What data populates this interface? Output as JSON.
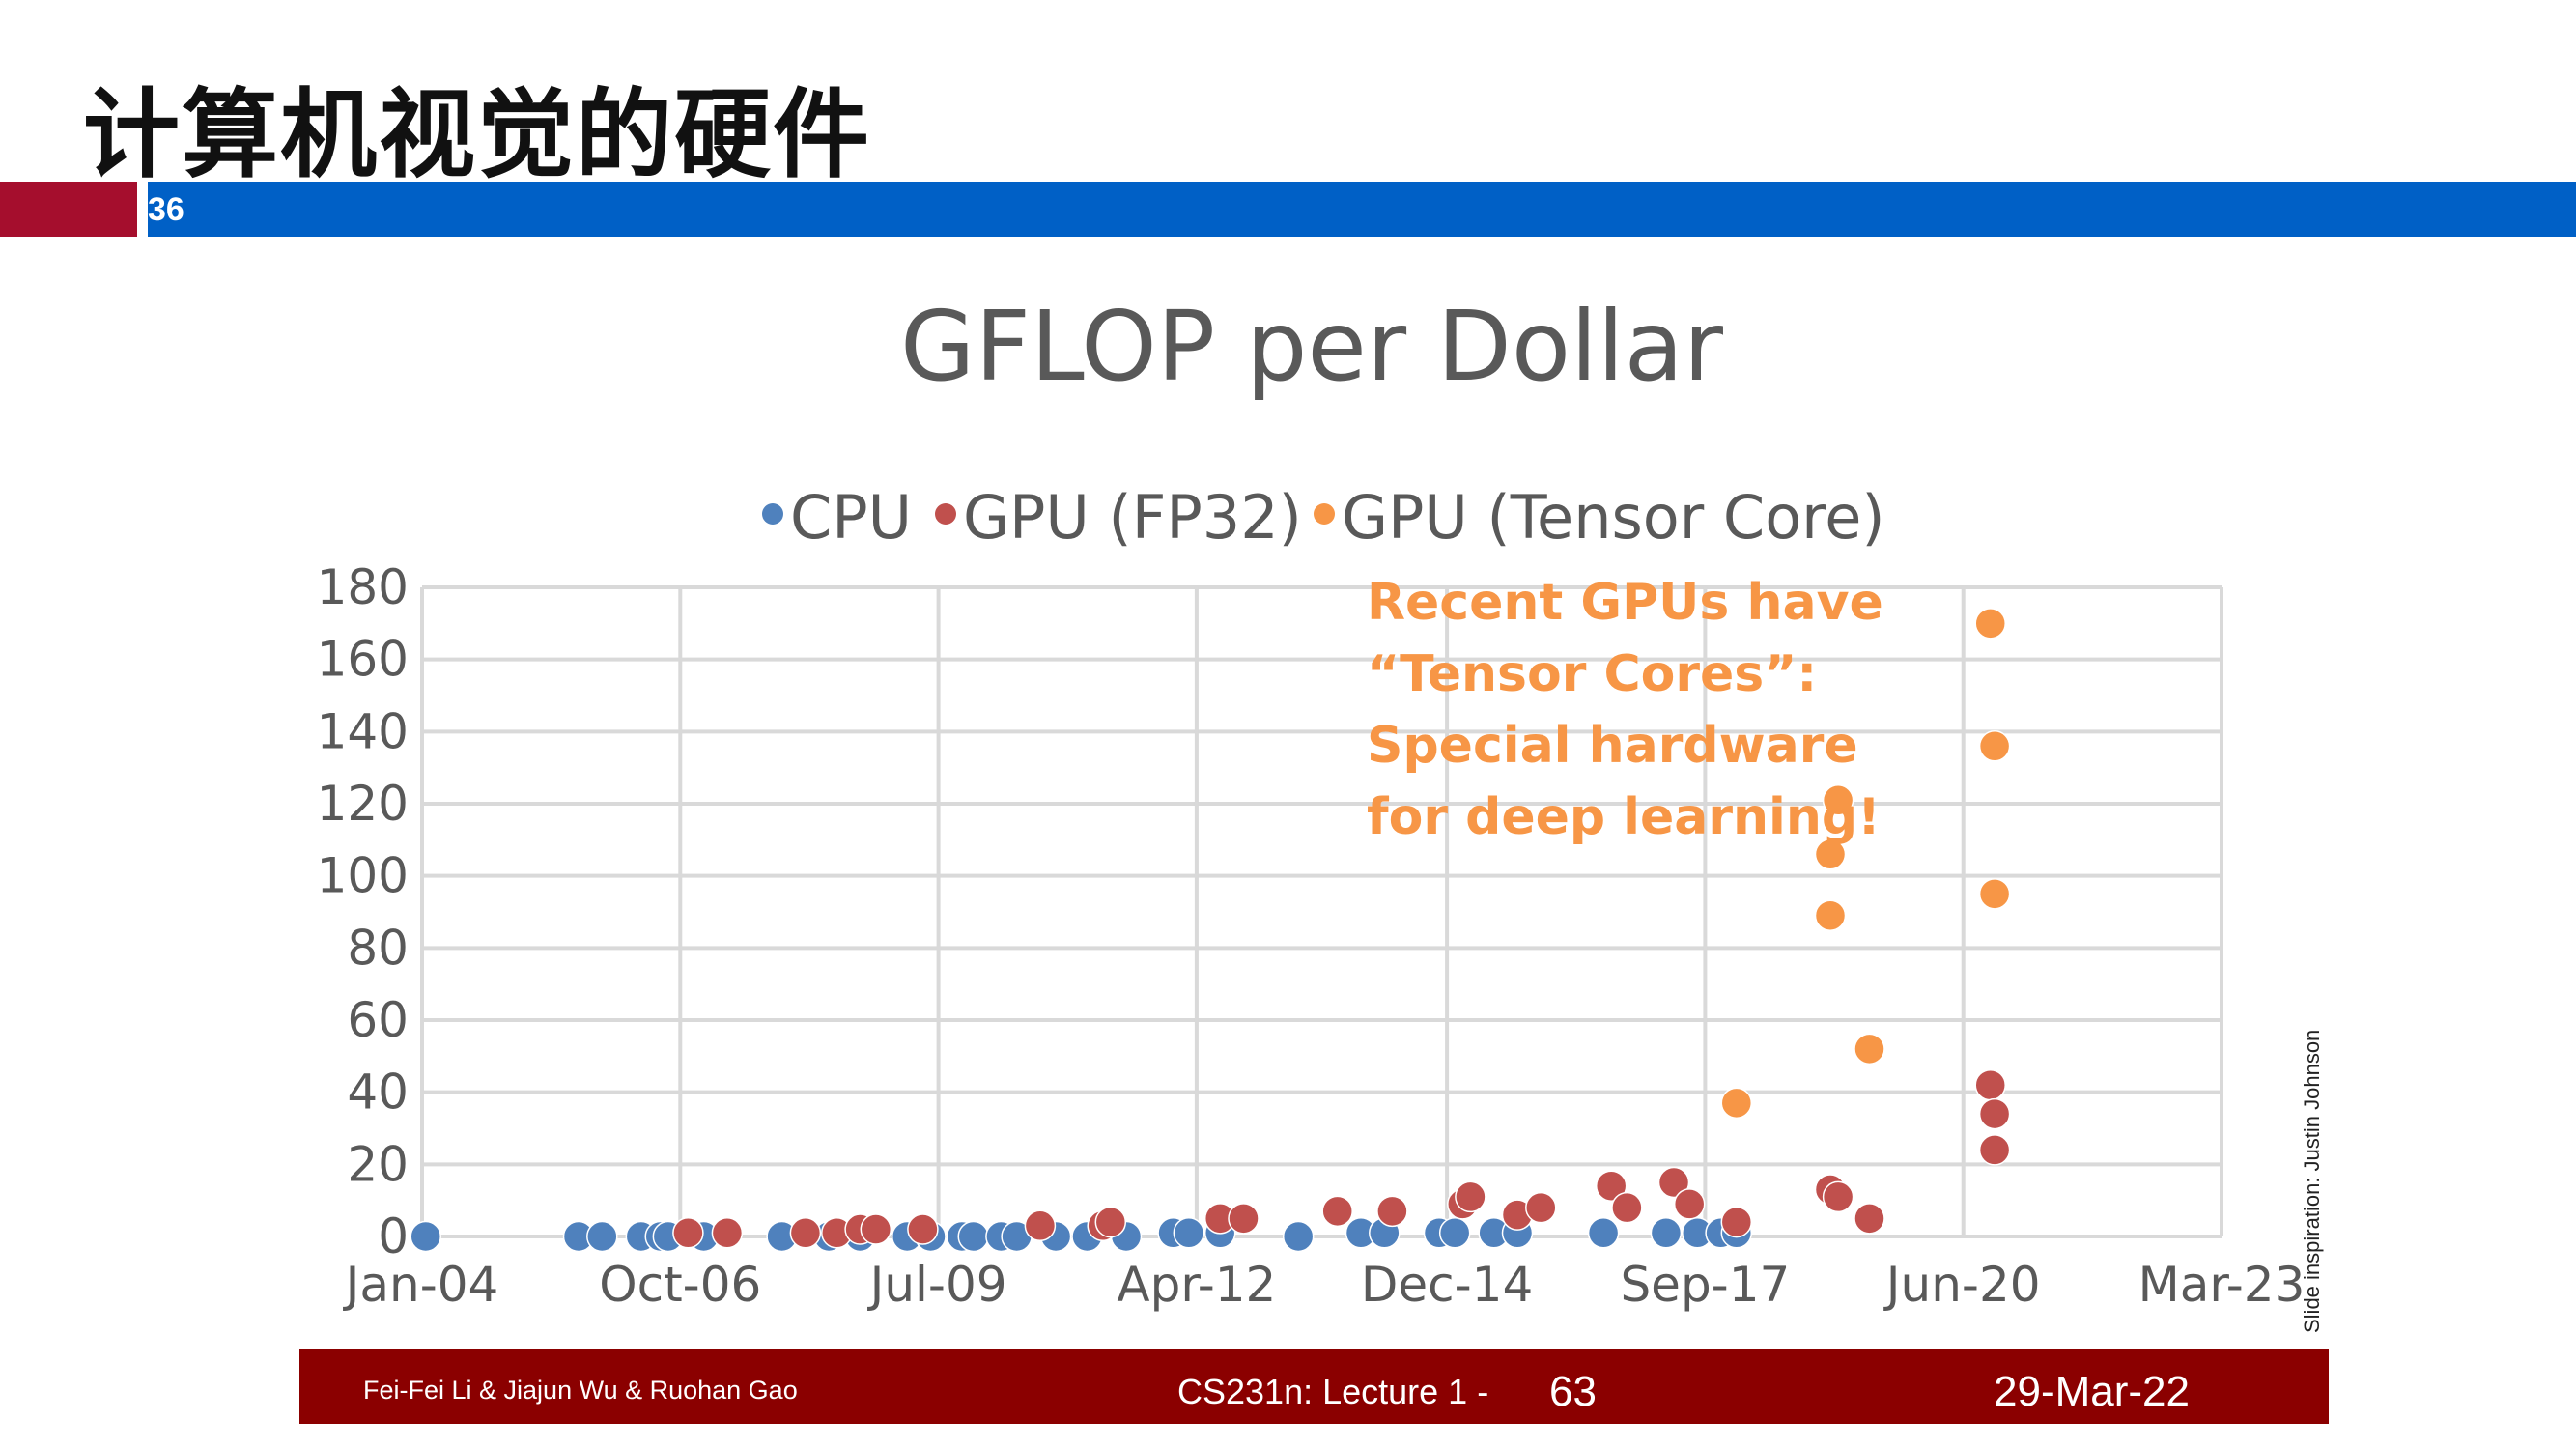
{
  "slide": {
    "title": "计算机视觉的硬件",
    "number": "36",
    "credit": "Slide inspiration: Justin Johnson"
  },
  "footer": {
    "authors": "Fei-Fei Li & Jiajun Wu & Ruohan Gao",
    "course": "CS231n: Lecture 1 -",
    "page": "63",
    "date": "29-Mar-22"
  },
  "colors": {
    "title_bar_red": "#a50e2d",
    "title_bar_blue": "#0060c6",
    "footer_bg": "#8b0000",
    "cpu": "#4f81bd",
    "gpu_fp32": "#c0504d",
    "gpu_tensor": "#f79646",
    "annotation": "#f79646"
  },
  "chart_data": {
    "type": "scatter",
    "title": "GFLOP per Dollar",
    "xlabel": "",
    "ylabel": "",
    "x_ticks": [
      "Jan-04",
      "Oct-06",
      "Jul-09",
      "Apr-12",
      "Dec-14",
      "Sep-17",
      "Jun-20",
      "Mar-23"
    ],
    "ylim": [
      0,
      180
    ],
    "y_ticks": [
      0,
      20,
      40,
      60,
      80,
      100,
      120,
      140,
      160,
      180
    ],
    "grid": true,
    "legend_position": "top",
    "annotation": [
      "Recent GPUs have",
      "“Tensor Cores”:",
      "Special hardware",
      "for deep learning!"
    ],
    "series": [
      {
        "name": "CPU",
        "color": "#4f81bd",
        "points": [
          [
            "2004-01-15",
            0
          ],
          [
            "2005-09-01",
            0
          ],
          [
            "2005-12-01",
            0
          ],
          [
            "2006-05-01",
            0
          ],
          [
            "2006-07-15",
            0
          ],
          [
            "2006-08-15",
            0
          ],
          [
            "2007-01-01",
            0
          ],
          [
            "2007-11-01",
            0
          ],
          [
            "2008-05-01",
            0
          ],
          [
            "2008-09-01",
            0
          ],
          [
            "2009-03-01",
            0
          ],
          [
            "2009-06-01",
            0
          ],
          [
            "2009-10-01",
            0
          ],
          [
            "2009-11-15",
            0
          ],
          [
            "2010-03-01",
            0
          ],
          [
            "2010-05-01",
            0
          ],
          [
            "2010-10-01",
            0
          ],
          [
            "2011-02-01",
            0
          ],
          [
            "2011-07-01",
            0
          ],
          [
            "2012-01-01",
            1
          ],
          [
            "2012-03-01",
            1
          ],
          [
            "2012-07-01",
            1
          ],
          [
            "2013-05-01",
            0
          ],
          [
            "2014-01-01",
            1
          ],
          [
            "2014-04-01",
            1
          ],
          [
            "2014-11-01",
            1
          ],
          [
            "2015-01-01",
            1
          ],
          [
            "2015-06-01",
            1
          ],
          [
            "2015-09-01",
            1
          ],
          [
            "2016-08-01",
            1
          ],
          [
            "2017-04-01",
            1
          ],
          [
            "2017-08-01",
            1
          ],
          [
            "2017-11-01",
            1
          ],
          [
            "2018-01-01",
            1
          ]
        ]
      },
      {
        "name": "GPU (FP32)",
        "color": "#c0504d",
        "points": [
          [
            "2006-11-01",
            1
          ],
          [
            "2007-04-01",
            1
          ],
          [
            "2008-02-01",
            1
          ],
          [
            "2008-06-01",
            1
          ],
          [
            "2008-09-01",
            2
          ],
          [
            "2008-11-01",
            2
          ],
          [
            "2009-05-01",
            2
          ],
          [
            "2010-08-01",
            3
          ],
          [
            "2011-04-01",
            3
          ],
          [
            "2011-05-01",
            4
          ],
          [
            "2012-07-01",
            5
          ],
          [
            "2012-10-01",
            5
          ],
          [
            "2013-10-01",
            7
          ],
          [
            "2014-05-01",
            7
          ],
          [
            "2015-02-01",
            9
          ],
          [
            "2015-03-01",
            11
          ],
          [
            "2015-09-01",
            6
          ],
          [
            "2015-12-01",
            8
          ],
          [
            "2016-09-01",
            14
          ],
          [
            "2016-11-01",
            8
          ],
          [
            "2017-05-01",
            15
          ],
          [
            "2017-07-01",
            9
          ],
          [
            "2018-01-01",
            4
          ],
          [
            "2019-01-01",
            13
          ],
          [
            "2019-02-01",
            11
          ],
          [
            "2019-06-01",
            5
          ],
          [
            "2020-09-15",
            42
          ],
          [
            "2020-10-01",
            34
          ],
          [
            "2020-10-01",
            24
          ]
        ]
      },
      {
        "name": "GPU (Tensor Core)",
        "color": "#f79646",
        "points": [
          [
            "2018-01-01",
            37
          ],
          [
            "2019-01-01",
            89
          ],
          [
            "2019-01-01",
            106
          ],
          [
            "2019-02-01",
            121
          ],
          [
            "2019-06-01",
            52
          ],
          [
            "2020-09-15",
            170
          ],
          [
            "2020-10-01",
            136
          ],
          [
            "2020-10-01",
            95
          ]
        ]
      }
    ]
  }
}
